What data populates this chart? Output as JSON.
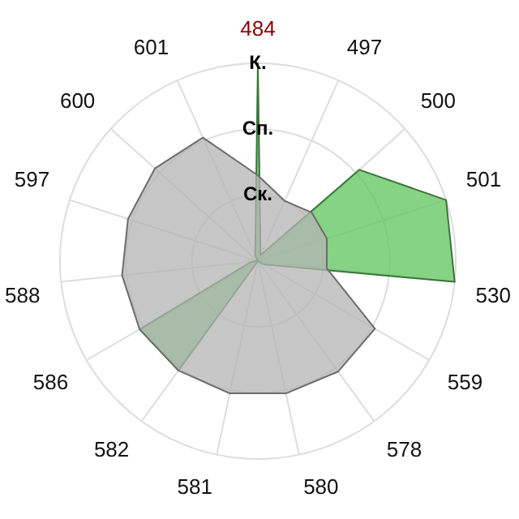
{
  "chart_data": {
    "type": "radar",
    "categories": [
      "484",
      "497",
      "500",
      "501",
      "530",
      "559",
      "578",
      "580",
      "581",
      "582",
      "586",
      "588",
      "597",
      "600",
      "601"
    ],
    "series": [
      {
        "color": "#b4b4b4",
        "values": [
          1.3,
          1.0,
          1.1,
          1.1,
          1.05,
          2.05,
          2.07,
          2.05,
          2.05,
          2.05,
          2.07,
          2.07,
          2.07,
          2.1,
          2.05
        ]
      },
      {
        "color": "#5ec45e",
        "values": [
          3.0,
          0.1,
          2.07,
          3.0,
          3.0,
          0.1,
          0,
          0,
          0,
          2.05,
          2.07,
          0.1,
          0,
          0,
          0.1
        ]
      }
    ],
    "ylim": [
      0,
      3
    ],
    "yticks": [
      {
        "value": 1,
        "label": "Ск."
      },
      {
        "value": 2,
        "label": "Сп."
      },
      {
        "value": 3,
        "label": "К."
      }
    ],
    "grid": true,
    "legend": false,
    "marker": "none"
  }
}
